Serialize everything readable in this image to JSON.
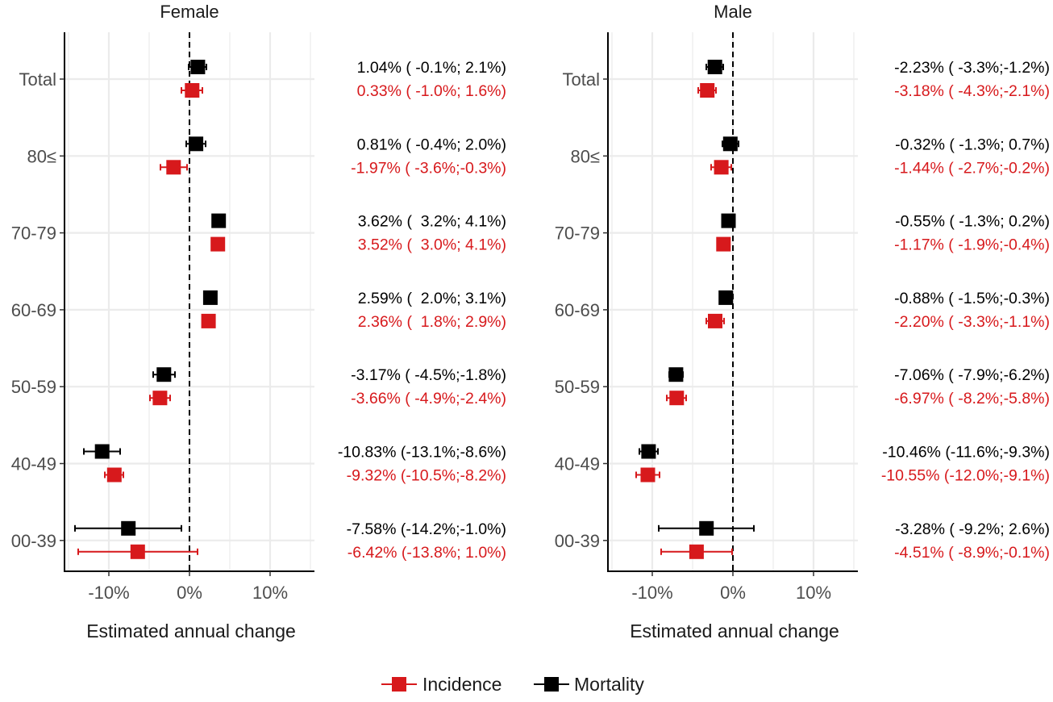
{
  "chart_data": {
    "type": "forest",
    "xlabel": "Estimated annual change",
    "xlim": [
      -15.5,
      15.5
    ],
    "xticks": [
      -10,
      0,
      10
    ],
    "xtick_labels": [
      "-10%",
      "0%",
      "10%"
    ],
    "categories": [
      "Total",
      "80≤",
      "70-79",
      "60-69",
      "50-59",
      "40-49",
      "00-39"
    ],
    "legend": {
      "position": "bottom",
      "items": [
        {
          "name": "Incidence",
          "color": "#d7191c"
        },
        {
          "name": "Mortality",
          "color": "#000000"
        }
      ]
    },
    "colors": {
      "incidence": "#d7191c",
      "mortality": "#000000",
      "grid": "#ebebeb",
      "axis": "#000000"
    },
    "panels": [
      {
        "title": "Female",
        "rows": [
          {
            "category": "Total",
            "mortality": {
              "est": 1.04,
              "lo": -0.1,
              "hi": 2.1,
              "label": "1.04% ( -0.1%; 2.1%)"
            },
            "incidence": {
              "est": 0.33,
              "lo": -1.0,
              "hi": 1.6,
              "label": "0.33% ( -1.0%; 1.6%)"
            }
          },
          {
            "category": "80≤",
            "mortality": {
              "est": 0.81,
              "lo": -0.4,
              "hi": 2.0,
              "label": "0.81% ( -0.4%; 2.0%)"
            },
            "incidence": {
              "est": -1.97,
              "lo": -3.6,
              "hi": -0.3,
              "label": "-1.97% ( -3.6%;-0.3%)"
            }
          },
          {
            "category": "70-79",
            "mortality": {
              "est": 3.62,
              "lo": 3.2,
              "hi": 4.1,
              "label": "3.62% (  3.2%; 4.1%)"
            },
            "incidence": {
              "est": 3.52,
              "lo": 3.0,
              "hi": 4.1,
              "label": "3.52% (  3.0%; 4.1%)"
            }
          },
          {
            "category": "60-69",
            "mortality": {
              "est": 2.59,
              "lo": 2.0,
              "hi": 3.1,
              "label": "2.59% (  2.0%; 3.1%)"
            },
            "incidence": {
              "est": 2.36,
              "lo": 1.8,
              "hi": 2.9,
              "label": "2.36% (  1.8%; 2.9%)"
            }
          },
          {
            "category": "50-59",
            "mortality": {
              "est": -3.17,
              "lo": -4.5,
              "hi": -1.8,
              "label": "-3.17% ( -4.5%;-1.8%)"
            },
            "incidence": {
              "est": -3.66,
              "lo": -4.9,
              "hi": -2.4,
              "label": "-3.66% ( -4.9%;-2.4%)"
            }
          },
          {
            "category": "40-49",
            "mortality": {
              "est": -10.83,
              "lo": -13.1,
              "hi": -8.6,
              "label": "-10.83% (-13.1%;-8.6%)"
            },
            "incidence": {
              "est": -9.32,
              "lo": -10.5,
              "hi": -8.2,
              "label": "-9.32% (-10.5%;-8.2%)"
            }
          },
          {
            "category": "00-39",
            "mortality": {
              "est": -7.58,
              "lo": -14.2,
              "hi": -1.0,
              "label": "-7.58% (-14.2%;-1.0%)"
            },
            "incidence": {
              "est": -6.42,
              "lo": -13.8,
              "hi": 1.0,
              "label": "-6.42% (-13.8%; 1.0%)"
            }
          }
        ]
      },
      {
        "title": "Male",
        "rows": [
          {
            "category": "Total",
            "mortality": {
              "est": -2.23,
              "lo": -3.3,
              "hi": -1.2,
              "label": "-2.23% ( -3.3%;-1.2%)"
            },
            "incidence": {
              "est": -3.18,
              "lo": -4.3,
              "hi": -2.1,
              "label": "-3.18% ( -4.3%;-2.1%)"
            }
          },
          {
            "category": "80≤",
            "mortality": {
              "est": -0.32,
              "lo": -1.3,
              "hi": 0.7,
              "label": "-0.32% ( -1.3%; 0.7%)"
            },
            "incidence": {
              "est": -1.44,
              "lo": -2.7,
              "hi": -0.2,
              "label": "-1.44% ( -2.7%;-0.2%)"
            }
          },
          {
            "category": "70-79",
            "mortality": {
              "est": -0.55,
              "lo": -1.3,
              "hi": 0.2,
              "label": "-0.55% ( -1.3%; 0.2%)"
            },
            "incidence": {
              "est": -1.17,
              "lo": -1.9,
              "hi": -0.4,
              "label": "-1.17% ( -1.9%;-0.4%)"
            }
          },
          {
            "category": "60-69",
            "mortality": {
              "est": -0.88,
              "lo": -1.5,
              "hi": -0.3,
              "label": "-0.88% ( -1.5%;-0.3%)"
            },
            "incidence": {
              "est": -2.2,
              "lo": -3.3,
              "hi": -1.1,
              "label": "-2.20% ( -3.3%;-1.1%)"
            }
          },
          {
            "category": "50-59",
            "mortality": {
              "est": -7.06,
              "lo": -7.9,
              "hi": -6.2,
              "label": "-7.06% ( -7.9%;-6.2%)"
            },
            "incidence": {
              "est": -6.97,
              "lo": -8.2,
              "hi": -5.8,
              "label": "-6.97% ( -8.2%;-5.8%)"
            }
          },
          {
            "category": "40-49",
            "mortality": {
              "est": -10.46,
              "lo": -11.6,
              "hi": -9.3,
              "label": "-10.46% (-11.6%;-9.3%)"
            },
            "incidence": {
              "est": -10.55,
              "lo": -12.0,
              "hi": -9.1,
              "label": "-10.55% (-12.0%;-9.1%)"
            }
          },
          {
            "category": "00-39",
            "mortality": {
              "est": -3.28,
              "lo": -9.2,
              "hi": 2.6,
              "label": "-3.28% ( -9.2%; 2.6%)"
            },
            "incidence": {
              "est": -4.51,
              "lo": -8.9,
              "hi": -0.1,
              "label": "-4.51% ( -8.9%;-0.1%)"
            }
          }
        ]
      }
    ]
  }
}
